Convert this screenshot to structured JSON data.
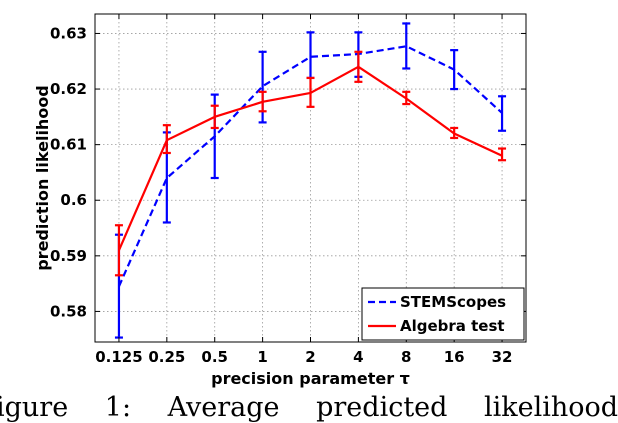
{
  "chart_data": {
    "type": "line",
    "xlabel": "precision parameter τ",
    "ylabel": "prediction likelihood",
    "categories": [
      "0.125",
      "0.25",
      "0.5",
      "1",
      "2",
      "4",
      "8",
      "16",
      "32"
    ],
    "ylim": [
      0.5745,
      0.6335
    ],
    "yticks": [
      "0.58",
      "0.59",
      "0.6",
      "0.61",
      "0.62",
      "0.63"
    ],
    "ytick_values": [
      0.58,
      0.59,
      0.6,
      0.61,
      0.62,
      0.63
    ],
    "grid": true,
    "legend_position": "bottom-right",
    "series": [
      {
        "name": "STEMScopes",
        "color": "#0000ff",
        "linestyle": "dashed",
        "values": [
          0.5845,
          0.604,
          0.6115,
          0.6205,
          0.6258,
          0.6263,
          0.6277,
          0.6235,
          0.6157
        ],
        "err_low": [
          0.5753,
          0.596,
          0.604,
          0.614,
          0.622,
          0.6222,
          0.6237,
          0.62,
          0.6125
        ],
        "err_high": [
          0.5938,
          0.6122,
          0.619,
          0.6267,
          0.6302,
          0.6302,
          0.6318,
          0.627,
          0.6187
        ]
      },
      {
        "name": "Algebra test",
        "color": "#ff0000",
        "linestyle": "solid",
        "values": [
          0.591,
          0.6108,
          0.615,
          0.6177,
          0.6193,
          0.624,
          0.6183,
          0.612,
          0.608
        ],
        "err_low": [
          0.5865,
          0.6085,
          0.613,
          0.616,
          0.6168,
          0.6213,
          0.6173,
          0.6112,
          0.6072
        ],
        "err_high": [
          0.5955,
          0.6135,
          0.617,
          0.6195,
          0.622,
          0.6267,
          0.6195,
          0.613,
          0.6093
        ]
      }
    ]
  },
  "caption": {
    "text": "igure 1: Average predicted likelihood"
  }
}
